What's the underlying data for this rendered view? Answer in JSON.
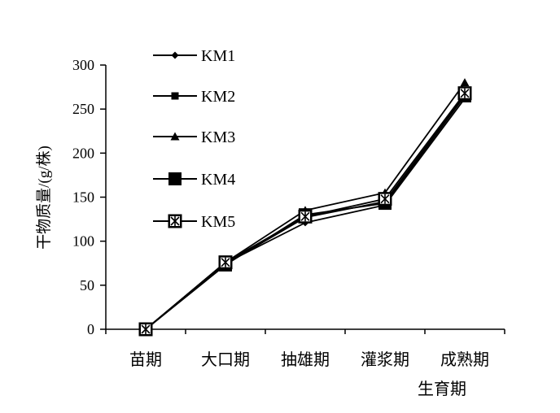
{
  "chart_data": {
    "type": "line",
    "categories": [
      "苗期",
      "大口期",
      "抽雄期",
      "灌浆期",
      "成熟期"
    ],
    "series": [
      {
        "name": "KM1",
        "values": [
          0,
          75,
          121,
          141,
          262
        ],
        "marker": "diamond",
        "color": "#000000"
      },
      {
        "name": "KM2",
        "values": [
          0,
          74,
          127,
          145,
          266
        ],
        "marker": "square-small",
        "color": "#000000"
      },
      {
        "name": "KM3",
        "values": [
          0,
          76,
          135,
          155,
          280
        ],
        "marker": "triangle",
        "color": "#000000"
      },
      {
        "name": "KM4",
        "values": [
          0,
          73,
          130,
          143,
          265
        ],
        "marker": "square-large",
        "color": "#000000"
      },
      {
        "name": "KM5",
        "values": [
          0,
          76,
          128,
          148,
          268
        ],
        "marker": "star-box",
        "color": "#000000"
      }
    ],
    "title": "",
    "xlabel": "生育期",
    "ylabel": "干物质量/(g/株)",
    "ylim": [
      0,
      300
    ],
    "yticks": [
      0,
      50,
      100,
      150,
      200,
      250,
      300
    ],
    "grid": false,
    "legend": "top-left"
  }
}
